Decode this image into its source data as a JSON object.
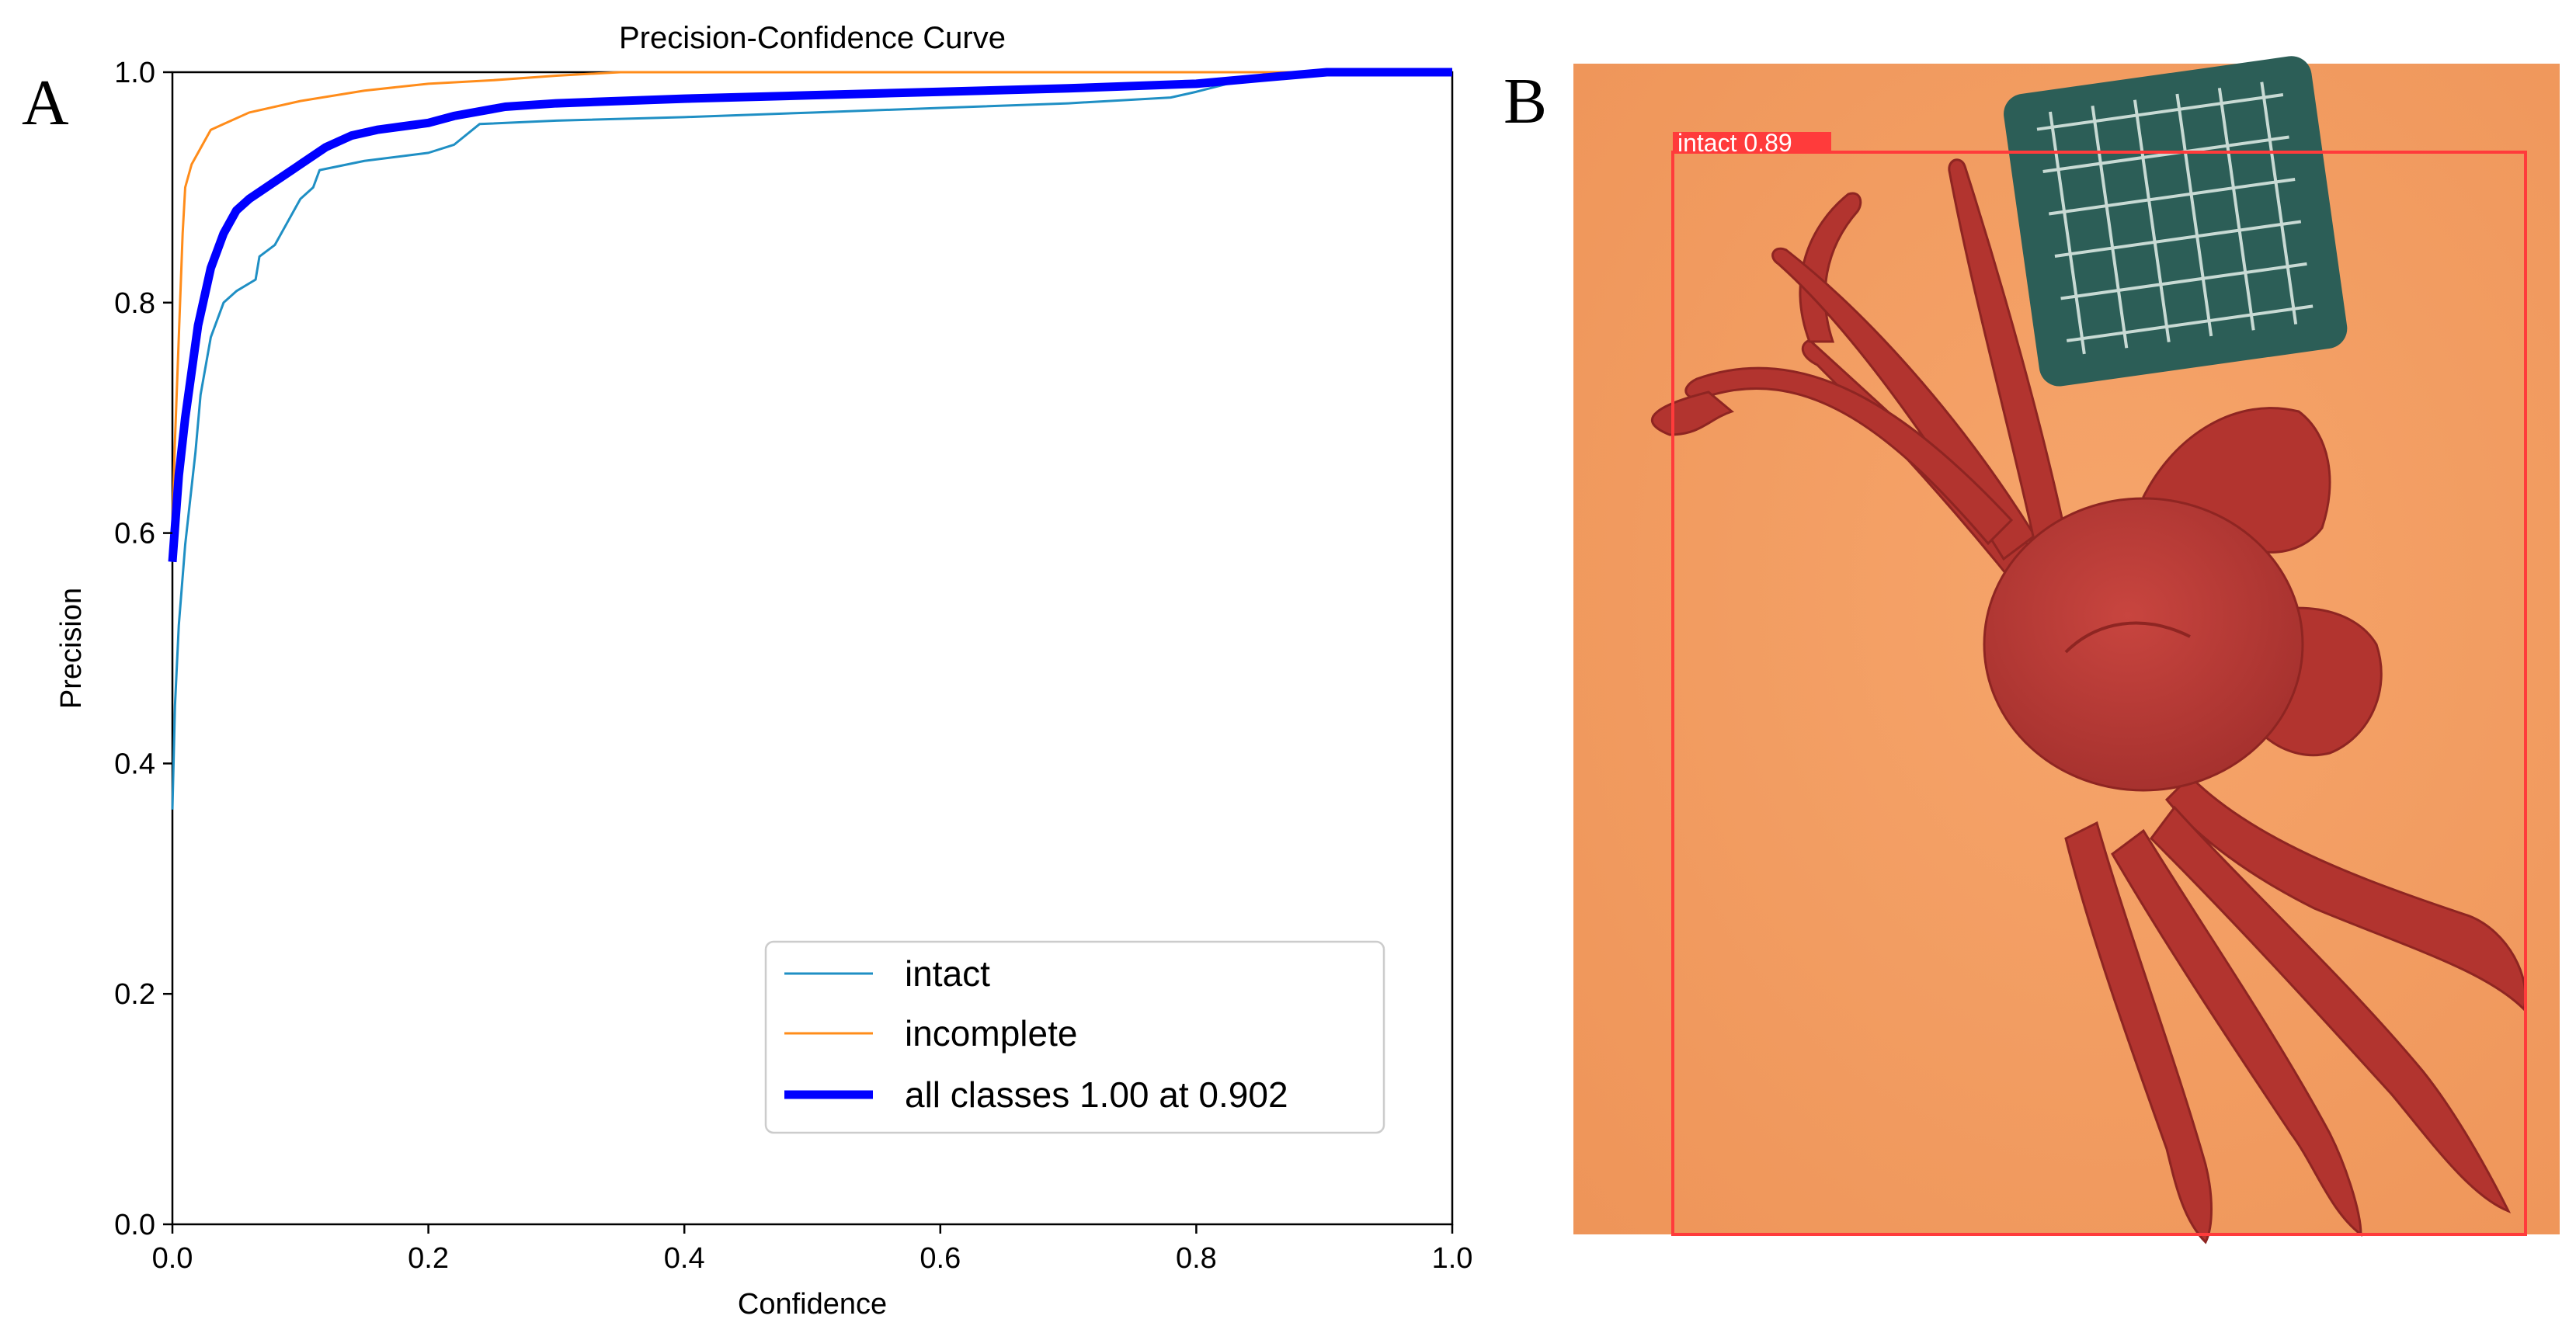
{
  "panels": {
    "left_letter": "A",
    "right_letter": "B"
  },
  "chart_data": {
    "type": "line",
    "title": "Precision-Confidence Curve",
    "xlabel": "Confidence",
    "ylabel": "Precision",
    "xlim": [
      0.0,
      1.0
    ],
    "ylim": [
      0.0,
      1.0
    ],
    "xticks": [
      0.0,
      0.2,
      0.4,
      0.6,
      0.8,
      1.0
    ],
    "yticks": [
      0.0,
      0.2,
      0.4,
      0.6,
      0.8,
      1.0
    ],
    "xtick_labels": [
      "0.0",
      "0.2",
      "0.4",
      "0.6",
      "0.8",
      "1.0"
    ],
    "ytick_labels": [
      "0.0",
      "0.2",
      "0.4",
      "0.6",
      "0.8",
      "1.0"
    ],
    "grid": false,
    "legend_position": "bottom-right",
    "series": [
      {
        "name": "intact",
        "color": "#1f8fc4",
        "width": "thin",
        "x": [
          0.0,
          0.002,
          0.005,
          0.01,
          0.013,
          0.018,
          0.022,
          0.03,
          0.04,
          0.05,
          0.065,
          0.068,
          0.08,
          0.09,
          0.1,
          0.11,
          0.115,
          0.15,
          0.2,
          0.22,
          0.24,
          0.3,
          0.4,
          0.5,
          0.6,
          0.7,
          0.78,
          0.8,
          0.86,
          0.9,
          1.0
        ],
        "y": [
          0.36,
          0.45,
          0.52,
          0.59,
          0.62,
          0.67,
          0.72,
          0.77,
          0.8,
          0.81,
          0.82,
          0.84,
          0.85,
          0.87,
          0.89,
          0.9,
          0.915,
          0.923,
          0.93,
          0.937,
          0.955,
          0.958,
          0.961,
          0.965,
          0.969,
          0.973,
          0.978,
          0.983,
          1.0,
          1.0,
          1.0
        ]
      },
      {
        "name": "incomplete",
        "color": "#ff8c1a",
        "width": "thin",
        "x": [
          0.0,
          0.002,
          0.004,
          0.006,
          0.008,
          0.01,
          0.015,
          0.02,
          0.025,
          0.03,
          0.04,
          0.06,
          0.1,
          0.15,
          0.2,
          0.25,
          0.3,
          0.35,
          0.4,
          0.6,
          1.0
        ],
        "y": [
          0.61,
          0.68,
          0.74,
          0.8,
          0.86,
          0.9,
          0.92,
          0.93,
          0.94,
          0.95,
          0.955,
          0.965,
          0.975,
          0.984,
          0.99,
          0.993,
          0.997,
          1.0,
          1.0,
          1.0,
          1.0
        ]
      },
      {
        "name": "all classes 1.00 at 0.902",
        "color": "#0000ff",
        "width": "thick",
        "x": [
          0.0,
          0.005,
          0.01,
          0.015,
          0.02,
          0.03,
          0.04,
          0.05,
          0.06,
          0.08,
          0.1,
          0.12,
          0.14,
          0.16,
          0.18,
          0.2,
          0.22,
          0.26,
          0.3,
          0.4,
          0.5,
          0.6,
          0.7,
          0.8,
          0.85,
          0.902,
          1.0
        ],
        "y": [
          0.575,
          0.65,
          0.7,
          0.74,
          0.78,
          0.83,
          0.86,
          0.88,
          0.89,
          0.905,
          0.92,
          0.935,
          0.945,
          0.95,
          0.953,
          0.956,
          0.962,
          0.97,
          0.973,
          0.977,
          0.98,
          0.983,
          0.986,
          0.99,
          0.995,
          1.0,
          1.0
        ]
      }
    ]
  },
  "detection": {
    "label": "intact 0.89",
    "box_color": "#ff3b3b"
  }
}
